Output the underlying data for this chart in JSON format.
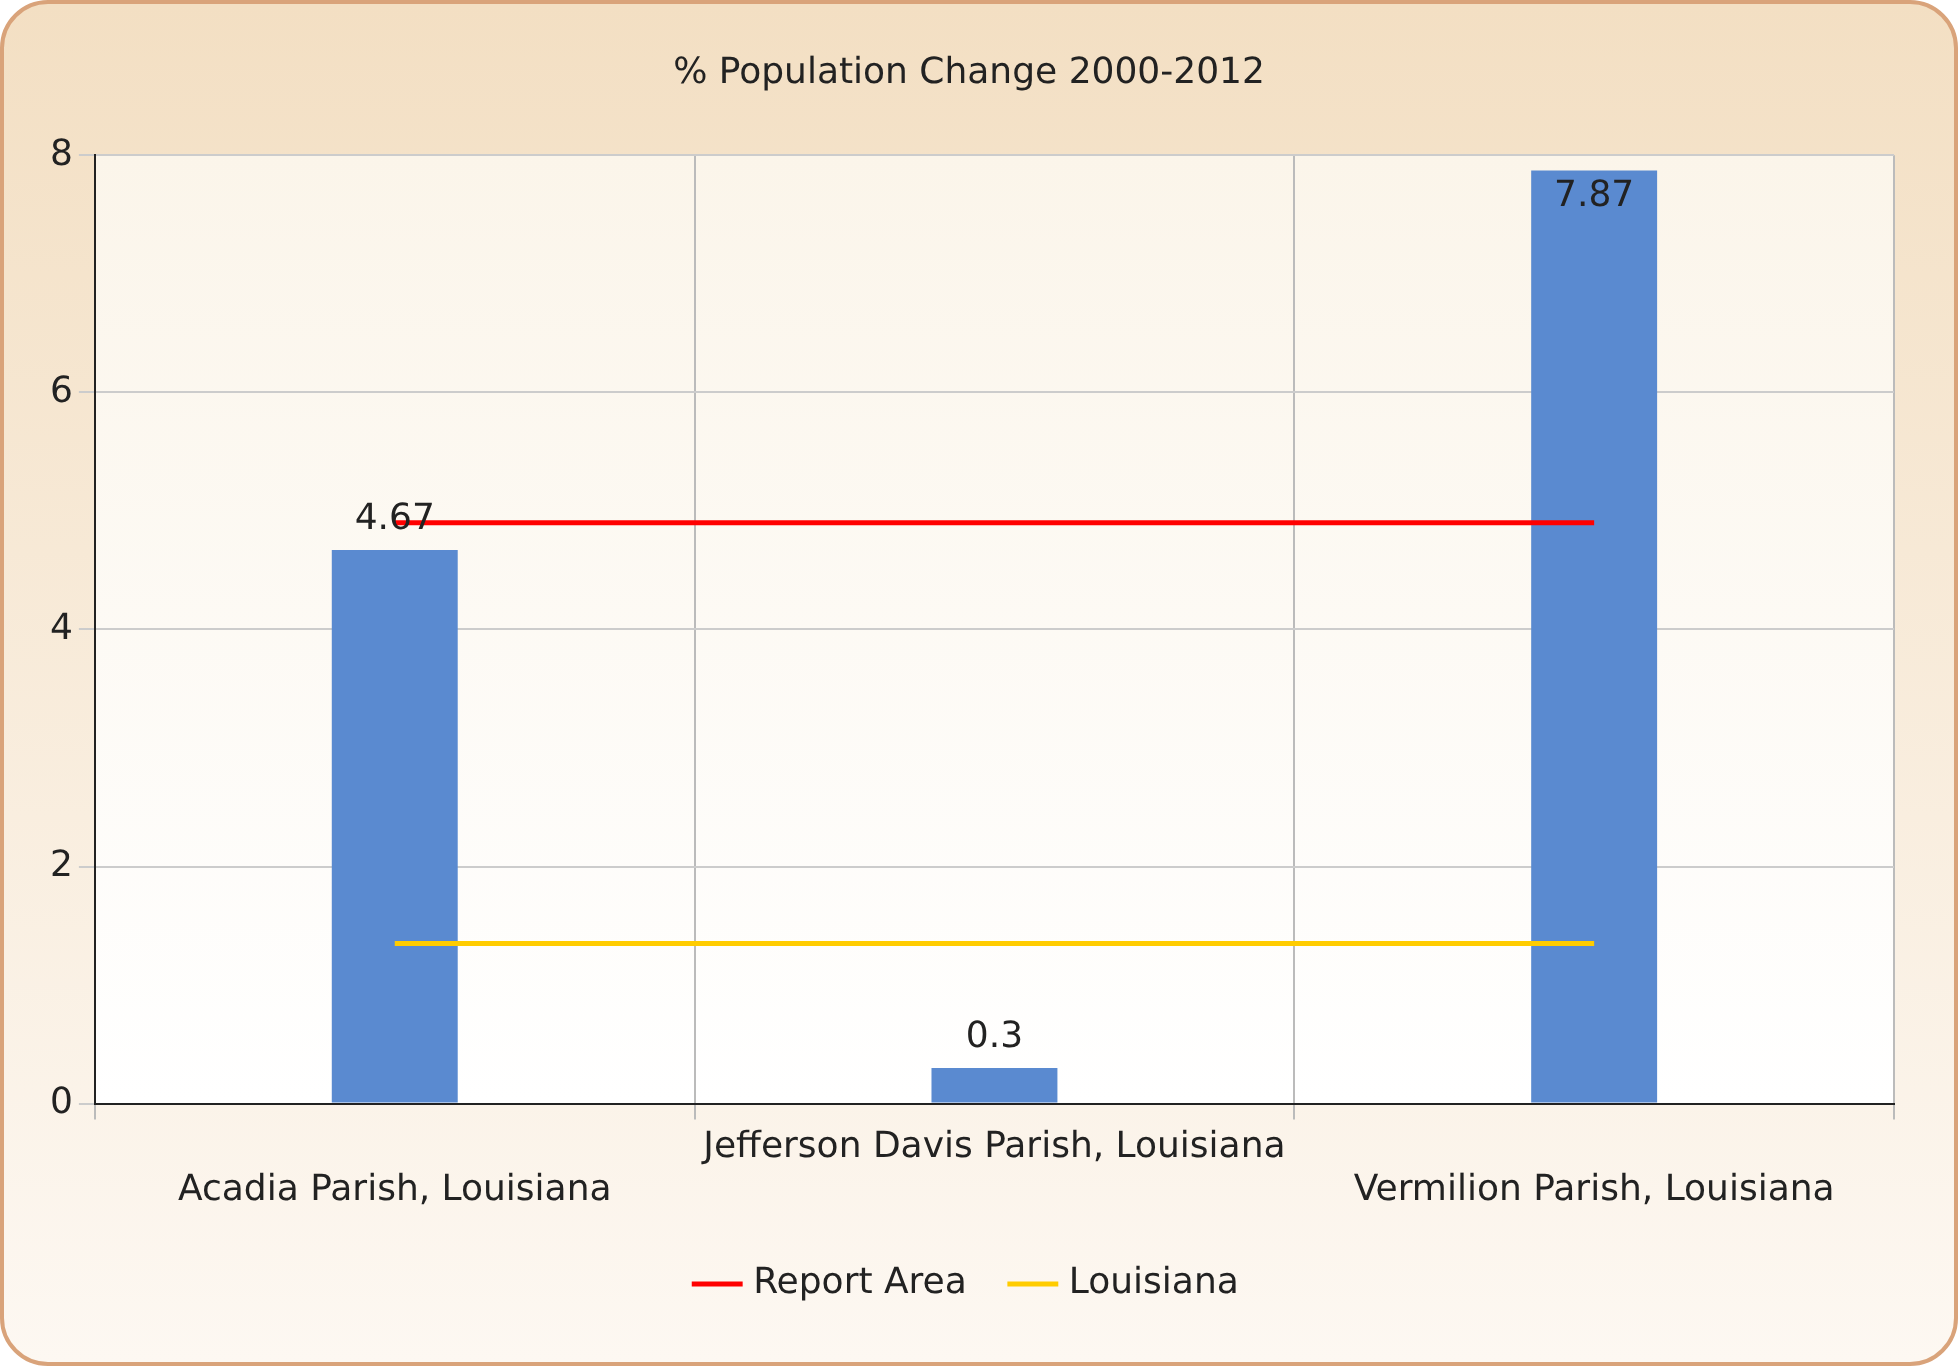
{
  "chart_data": {
    "type": "bar",
    "title": "% Population Change 2000-2012",
    "categories": [
      "Acadia Parish, Louisiana",
      "Jefferson Davis Parish, Louisiana",
      "Vermilion Parish, Louisiana"
    ],
    "series": [
      {
        "color": "#5a8ad0",
        "values": [
          4.67,
          0.3,
          7.87
        ],
        "value_labels": [
          "4.67",
          "0.3",
          "7.87"
        ]
      },
      {
        "type": "line",
        "name": "Report Area",
        "color": "#ff0000",
        "values": [
          4.9,
          4.9,
          4.9
        ]
      },
      {
        "type": "line",
        "name": "Louisiana",
        "color": "#ffcc00",
        "values": [
          1.35,
          1.35,
          1.35
        ]
      }
    ],
    "ylim": [
      0,
      8
    ],
    "yticks": [
      0,
      2,
      4,
      6,
      8
    ],
    "grid": true,
    "legend": "bottom",
    "marker": "none"
  }
}
